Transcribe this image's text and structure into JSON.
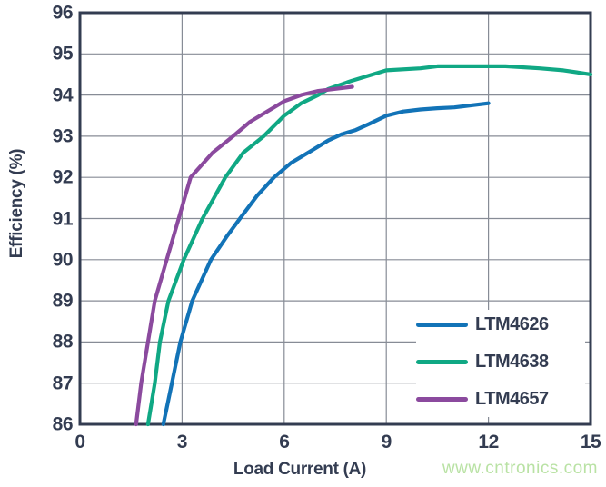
{
  "watermark": {
    "text": "www.cntronics.com",
    "color": "#b9e2a4"
  },
  "chart_data": {
    "type": "line",
    "title": "",
    "xlabel": "Load Current (A)",
    "ylabel": "Efficiency (%)",
    "xlim": [
      0,
      15
    ],
    "ylim": [
      86,
      96
    ],
    "xticks": [
      0,
      3,
      6,
      9,
      12,
      15
    ],
    "yticks": [
      86,
      87,
      88,
      89,
      90,
      91,
      92,
      93,
      94,
      95,
      96
    ],
    "grid": true,
    "legend_position": "lower right",
    "axis_color": "#333c51",
    "grid_color": "#878c96",
    "series": [
      {
        "name": "LTM4626",
        "color": "#1273b7",
        "points": [
          [
            2.45,
            86
          ],
          [
            2.7,
            87
          ],
          [
            2.95,
            88
          ],
          [
            3.3,
            89
          ],
          [
            3.85,
            90
          ],
          [
            4.3,
            90.55
          ],
          [
            4.7,
            91
          ],
          [
            5.2,
            91.55
          ],
          [
            5.7,
            92
          ],
          [
            6.2,
            92.35
          ],
          [
            6.8,
            92.65
          ],
          [
            7.3,
            92.9
          ],
          [
            7.7,
            93.05
          ],
          [
            8.1,
            93.15
          ],
          [
            8.5,
            93.3
          ],
          [
            9,
            93.5
          ],
          [
            9.5,
            93.6
          ],
          [
            10,
            93.65
          ],
          [
            10.5,
            93.68
          ],
          [
            11,
            93.7
          ],
          [
            11.5,
            93.75
          ],
          [
            12,
            93.8
          ]
        ]
      },
      {
        "name": "LTM4638",
        "color": "#10a884",
        "points": [
          [
            2.0,
            86
          ],
          [
            2.2,
            87
          ],
          [
            2.35,
            88
          ],
          [
            2.6,
            89
          ],
          [
            3.05,
            90
          ],
          [
            3.6,
            91
          ],
          [
            4.27,
            92
          ],
          [
            4.8,
            92.6
          ],
          [
            5.4,
            93
          ],
          [
            6.0,
            93.5
          ],
          [
            6.5,
            93.8
          ],
          [
            7.0,
            94.0
          ],
          [
            7.3,
            94.15
          ],
          [
            8.0,
            94.35
          ],
          [
            9.0,
            94.6
          ],
          [
            10.0,
            94.65
          ],
          [
            10.5,
            94.7
          ],
          [
            12.5,
            94.7
          ],
          [
            13.5,
            94.65
          ],
          [
            14.2,
            94.6
          ],
          [
            15,
            94.5
          ]
        ]
      },
      {
        "name": "LTM4657",
        "color": "#8b4a9e",
        "points": [
          [
            1.65,
            86
          ],
          [
            1.8,
            87
          ],
          [
            2.0,
            88
          ],
          [
            2.2,
            89
          ],
          [
            2.55,
            90
          ],
          [
            2.9,
            91
          ],
          [
            3.25,
            92
          ],
          [
            3.9,
            92.6
          ],
          [
            4.5,
            93
          ],
          [
            5.0,
            93.35
          ],
          [
            5.5,
            93.6
          ],
          [
            6.0,
            93.85
          ],
          [
            6.5,
            94.0
          ],
          [
            7.0,
            94.1
          ],
          [
            7.5,
            94.15
          ],
          [
            8.0,
            94.2
          ]
        ]
      }
    ]
  }
}
